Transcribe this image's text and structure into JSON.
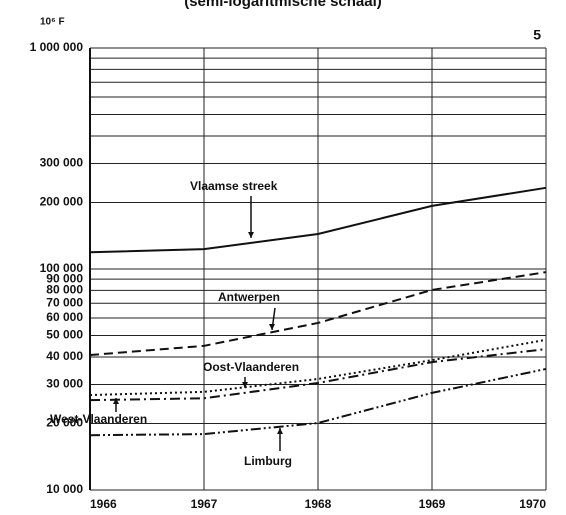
{
  "chart_data": {
    "type": "line",
    "title": "(semi-logaritmische schaal)",
    "y_unit": "10⁶ F",
    "page_number": "5",
    "log_scale": true,
    "grid": true,
    "x": [
      1966,
      1967,
      1968,
      1969,
      1970
    ],
    "xlim": [
      1966,
      1970
    ],
    "xticks": [
      1966,
      1967,
      1968,
      1969,
      1970
    ],
    "ylim": [
      10000,
      1000000
    ],
    "yticks": [
      {
        "value": 10000,
        "label": "10 000"
      },
      {
        "value": 20000,
        "label": "20 000"
      },
      {
        "value": 30000,
        "label": "30 000"
      },
      {
        "value": 40000,
        "label": "40 000"
      },
      {
        "value": 50000,
        "label": "50 000"
      },
      {
        "value": 60000,
        "label": "60 000"
      },
      {
        "value": 70000,
        "label": "70 000"
      },
      {
        "value": 80000,
        "label": "80 000"
      },
      {
        "value": 90000,
        "label": "90 000"
      },
      {
        "value": 100000,
        "label": "100 000"
      },
      {
        "value": 200000,
        "label": "200 000"
      },
      {
        "value": 300000,
        "label": "300 000"
      },
      {
        "value": 1000000,
        "label": "1 000 000"
      }
    ],
    "ygrid_minor": [
      400000,
      500000,
      600000,
      700000,
      800000,
      900000
    ],
    "series": [
      {
        "name": "Vlaamse streek",
        "color": "#111111",
        "linestyle": "solid",
        "values": [
          119000,
          123000,
          144000,
          193000,
          233000
        ]
      },
      {
        "name": "Antwerpen",
        "color": "#111111",
        "linestyle": "dashed",
        "values": [
          40800,
          44900,
          57000,
          80400,
          96800
        ]
      },
      {
        "name": "Oost-Vlaanderen",
        "color": "#111111",
        "linestyle": "dotted",
        "values": [
          26900,
          27800,
          31800,
          38700,
          47800
        ]
      },
      {
        "name": "West-Vlaanderen",
        "color": "#111111",
        "linestyle": "dashdot",
        "values": [
          25500,
          26000,
          30500,
          37900,
          43400
        ]
      },
      {
        "name": "Limburg",
        "color": "#111111",
        "linestyle": "dashdotdot",
        "values": [
          17700,
          17900,
          20100,
          27500,
          35300
        ]
      }
    ]
  }
}
